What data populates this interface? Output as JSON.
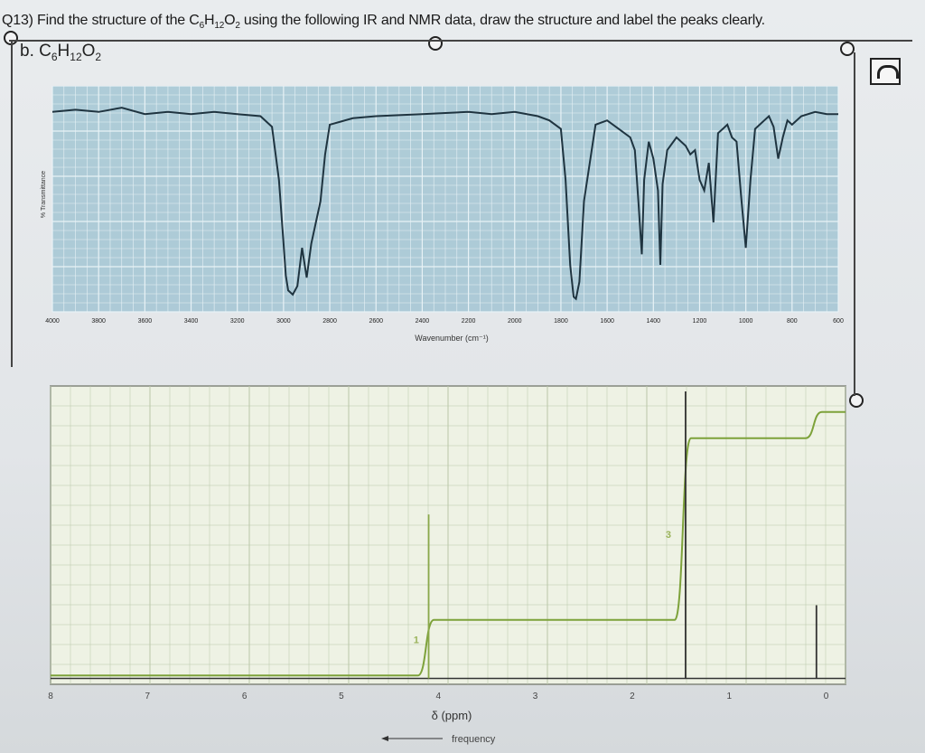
{
  "question": {
    "prefix": "Q13) Find the structure of the C",
    "formula_sub1": "6",
    "mid1": "H",
    "formula_sub2": "12",
    "mid2": "O",
    "formula_sub3": "2",
    "suffix": " using the following IR and NMR data, draw the structure and label the peaks clearly."
  },
  "part": {
    "label": "b. C",
    "s1": "6",
    "h": "H",
    "s2": "12",
    "o": "O",
    "s3": "2"
  },
  "chart_data": [
    {
      "type": "line",
      "title": "",
      "xlabel": "Wavenumber (cm⁻¹)",
      "ylabel": "% Transmittance",
      "x_ticks": [
        "4000",
        "3800",
        "3600",
        "3400",
        "3200",
        "3000",
        "2800",
        "2600",
        "2400",
        "2200",
        "2000",
        "1800",
        "1600",
        "1400",
        "1200",
        "1000",
        "800",
        "600"
      ],
      "xlim": [
        4000,
        600
      ],
      "ylim": [
        0,
        100
      ],
      "grid": true,
      "series": [
        {
          "x": [
            4000,
            3900,
            3800,
            3700,
            3600,
            3500,
            3400,
            3300,
            3200,
            3100,
            3050,
            3020,
            3000,
            2990,
            2980,
            2960,
            2940,
            2920,
            2900,
            2880,
            2860,
            2840,
            2820,
            2800,
            2700,
            2600,
            2400,
            2200,
            2100,
            2000,
            1900,
            1850,
            1800,
            1780,
            1760,
            1745,
            1735,
            1720,
            1700,
            1650,
            1600,
            1550,
            1500,
            1480,
            1465,
            1450,
            1440,
            1420,
            1400,
            1380,
            1370,
            1360,
            1340,
            1300,
            1260,
            1240,
            1220,
            1200,
            1180,
            1160,
            1140,
            1120,
            1100,
            1080,
            1060,
            1040,
            1020,
            1000,
            980,
            960,
            940,
            920,
            900,
            880,
            860,
            840,
            820,
            800,
            760,
            700,
            650,
            600
          ],
          "y": [
            92,
            93,
            92,
            94,
            91,
            92,
            91,
            92,
            91,
            90,
            85,
            60,
            30,
            15,
            8,
            6,
            10,
            28,
            14,
            30,
            40,
            50,
            72,
            86,
            89,
            90,
            91,
            92,
            91,
            92,
            90,
            88,
            84,
            60,
            20,
            5,
            4,
            12,
            50,
            86,
            88,
            84,
            80,
            74,
            50,
            25,
            60,
            78,
            70,
            55,
            20,
            58,
            74,
            80,
            76,
            72,
            74,
            60,
            55,
            68,
            40,
            82,
            84,
            86,
            80,
            78,
            52,
            28,
            60,
            84,
            86,
            88,
            90,
            85,
            70,
            80,
            88,
            86,
            90,
            92,
            91,
            91
          ]
        }
      ]
    },
    {
      "type": "line",
      "title": "",
      "xlabel": "δ (ppm)",
      "x_caption": "frequency",
      "x_ticks": [
        "8",
        "7",
        "6",
        "5",
        "4",
        "3",
        "2",
        "1",
        "0"
      ],
      "xlim": [
        8,
        -0.2
      ],
      "peaks": [
        {
          "shift": 4.1,
          "height": 0.58
        },
        {
          "shift": 1.45,
          "height": 1.0
        },
        {
          "shift": 0.1,
          "height": 0.27
        }
      ],
      "integration_labels": [
        {
          "label": "1",
          "shift": 4.2
        },
        {
          "label": "3",
          "shift": 1.6
        }
      ],
      "integral_steps": [
        {
          "shift": 4.1,
          "level": 0.22
        },
        {
          "shift": 1.45,
          "level": 0.84
        },
        {
          "shift": 0.1,
          "level": 0.93
        }
      ],
      "baseline_level": 0.02
    }
  ]
}
